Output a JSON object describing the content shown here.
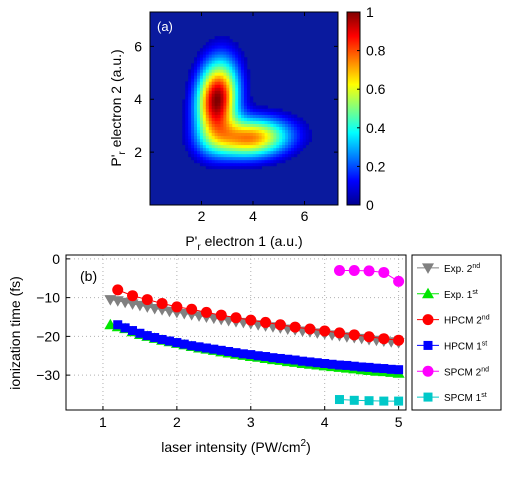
{
  "chart_data": [
    {
      "type": "heatmap",
      "panel_label": "(a)",
      "xlabel": "P'r electron 1 (a.u.)",
      "xlabel_parts": {
        "main": "P'",
        "sub": "r",
        "rest": " electron 1 (a.u.)"
      },
      "ylabel": "P'r electron 2 (a.u.)",
      "ylabel_parts": {
        "main": "P'",
        "sub": "r",
        "rest": " electron 2 (a.u.)"
      },
      "xlim": [
        0,
        7.3
      ],
      "ylim": [
        0,
        7.3
      ],
      "xticks": [
        2,
        4,
        6
      ],
      "yticks": [
        2,
        4,
        6
      ],
      "colorbar": {
        "min": 0,
        "max": 1,
        "ticks": [
          0,
          0.2,
          0.4,
          0.6,
          0.8,
          1
        ],
        "tick_labels": [
          "0",
          "0.2",
          "0.4",
          "0.6",
          "0.8",
          "1"
        ]
      },
      "background_color": "#0a1a9e",
      "lobes": [
        {
          "cx": 2.6,
          "cy": 4.0,
          "sx": 0.55,
          "sy": 1.0,
          "rho": 0.15,
          "amp": 1.0
        },
        {
          "cx": 3.9,
          "cy": 2.55,
          "sx": 1.05,
          "sy": 0.52,
          "rho": 0.1,
          "amp": 0.75
        }
      ]
    },
    {
      "type": "scatter",
      "panel_label": "(b)",
      "xlabel": "laser intensity (PW/cm2)",
      "xlabel_parts": {
        "main": "laser intensity (PW/cm",
        "sup": "2",
        "rest": ")"
      },
      "ylabel": "ionization time (fs)",
      "xlim": [
        0.5,
        5.1
      ],
      "ylim": [
        -39,
        1
      ],
      "xticks": [
        1,
        2,
        3,
        4,
        5
      ],
      "yticks": [
        0,
        -10,
        -20,
        -30
      ],
      "ytick_labels": [
        "0",
        "−10",
        "−20",
        "−30"
      ],
      "grid": true,
      "legend_position": "right, outside plot",
      "series": [
        {
          "name": "Exp. 2nd",
          "label_main": "Exp. 2",
          "label_sup": "nd",
          "marker": "triangle-down",
          "color": "#808080",
          "x": [
            1.1,
            1.2,
            1.3,
            1.4,
            1.5,
            1.6,
            1.7,
            1.8,
            1.9,
            2.0,
            2.1,
            2.2,
            2.3,
            2.4,
            2.5,
            2.6,
            2.7,
            2.8,
            2.9,
            3.0,
            3.1,
            3.2,
            3.3,
            3.4,
            3.5,
            3.6,
            3.7,
            3.8,
            3.9,
            4.0,
            4.1,
            4.2,
            4.3,
            4.4,
            4.5,
            4.6,
            4.7,
            4.8,
            4.9,
            5.0
          ],
          "y": [
            -10.5,
            -10.8,
            -11.2,
            -11.6,
            -12.0,
            -12.4,
            -12.8,
            -13.1,
            -13.5,
            -13.8,
            -14.1,
            -14.4,
            -14.7,
            -15.0,
            -15.3,
            -15.6,
            -15.9,
            -16.2,
            -16.4,
            -16.7,
            -17.0,
            -17.3,
            -17.5,
            -17.8,
            -18.1,
            -18.3,
            -18.6,
            -18.8,
            -19.1,
            -19.3,
            -19.6,
            -19.8,
            -20.1,
            -20.3,
            -20.5,
            -20.8,
            -21.0,
            -21.2,
            -21.4,
            -21.6
          ]
        },
        {
          "name": "Exp. 1st",
          "label_main": "Exp. 1",
          "label_sup": "st",
          "marker": "triangle-up",
          "color": "#00e600",
          "x": [
            1.1,
            1.2,
            1.3,
            1.4,
            1.5,
            1.6,
            1.7,
            1.8,
            1.9,
            2.0,
            2.1,
            2.2,
            2.3,
            2.4,
            2.5,
            2.6,
            2.7,
            2.8,
            2.9,
            3.0,
            3.1,
            3.2,
            3.3,
            3.4,
            3.5,
            3.6,
            3.7,
            3.8,
            3.9,
            4.0,
            4.1,
            4.2,
            4.3,
            4.4,
            4.5,
            4.6,
            4.7,
            4.8,
            4.9,
            5.0
          ],
          "y": [
            -17.0,
            -17.5,
            -18.0,
            -18.8,
            -19.5,
            -20.0,
            -20.5,
            -21.0,
            -21.4,
            -21.8,
            -22.2,
            -22.6,
            -23.0,
            -23.3,
            -23.6,
            -24.0,
            -24.3,
            -24.6,
            -24.9,
            -25.2,
            -25.4,
            -25.7,
            -26.0,
            -26.2,
            -26.5,
            -26.7,
            -27.0,
            -27.2,
            -27.4,
            -27.6,
            -27.8,
            -28.0,
            -28.2,
            -28.4,
            -28.6,
            -28.8,
            -29.0,
            -29.1,
            -29.3,
            -29.5
          ]
        },
        {
          "name": "HPCM 2nd",
          "label_main": "HPCM 2",
          "label_sup": "nd",
          "marker": "circle",
          "color": "#ff0000",
          "x": [
            1.2,
            1.4,
            1.6,
            1.8,
            2.0,
            2.2,
            2.4,
            2.6,
            2.8,
            3.0,
            3.2,
            3.4,
            3.6,
            3.8,
            4.0,
            4.2,
            4.4,
            4.6,
            4.8,
            5.0
          ],
          "y": [
            -8.0,
            -9.5,
            -10.5,
            -11.5,
            -12.4,
            -13.0,
            -13.8,
            -14.5,
            -15.2,
            -15.8,
            -16.4,
            -17.0,
            -17.6,
            -18.1,
            -18.6,
            -19.1,
            -19.6,
            -20.1,
            -20.6,
            -21.0
          ]
        },
        {
          "name": "HPCM 1st",
          "label_main": "HPCM 1",
          "label_sup": "st",
          "marker": "square",
          "color": "#0000ff",
          "x": [
            1.2,
            1.3,
            1.4,
            1.5,
            1.6,
            1.7,
            1.8,
            1.9,
            2.0,
            2.1,
            2.2,
            2.3,
            2.4,
            2.5,
            2.6,
            2.7,
            2.8,
            2.9,
            3.0,
            3.1,
            3.2,
            3.3,
            3.4,
            3.5,
            3.6,
            3.7,
            3.8,
            3.9,
            4.0,
            4.1,
            4.2,
            4.3,
            4.4,
            4.5,
            4.6,
            4.7,
            4.8,
            4.9,
            5.0
          ],
          "y": [
            -17.0,
            -17.8,
            -18.5,
            -19.2,
            -19.8,
            -20.3,
            -20.8,
            -21.2,
            -21.6,
            -22.0,
            -22.4,
            -22.7,
            -23.0,
            -23.3,
            -23.6,
            -23.9,
            -24.2,
            -24.5,
            -24.7,
            -25.0,
            -25.2,
            -25.5,
            -25.7,
            -25.9,
            -26.1,
            -26.4,
            -26.6,
            -26.8,
            -27.0,
            -27.2,
            -27.4,
            -27.5,
            -27.7,
            -27.9,
            -28.0,
            -28.2,
            -28.3,
            -28.5,
            -28.6
          ]
        },
        {
          "name": "SPCM 2nd",
          "label_main": "SPCM 2",
          "label_sup": "nd",
          "marker": "circle",
          "color": "#ff00ff",
          "x": [
            4.2,
            4.4,
            4.6,
            4.8,
            5.0
          ],
          "y": [
            -3.0,
            -3.0,
            -3.1,
            -3.5,
            -5.8
          ]
        },
        {
          "name": "SPCM 1st",
          "label_main": "SPCM 1",
          "label_sup": "st",
          "marker": "square",
          "color": "#00c8c8",
          "x": [
            4.2,
            4.4,
            4.6,
            4.8,
            5.0
          ],
          "y": [
            -36.3,
            -36.5,
            -36.6,
            -36.7,
            -36.7
          ]
        }
      ]
    }
  ]
}
